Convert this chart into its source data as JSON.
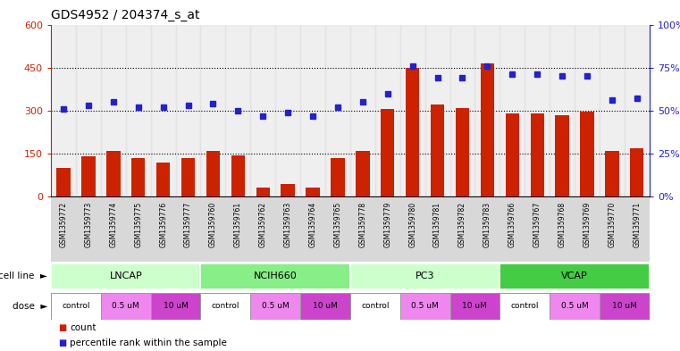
{
  "title": "GDS4952 / 204374_s_at",
  "samples": [
    "GSM1359772",
    "GSM1359773",
    "GSM1359774",
    "GSM1359775",
    "GSM1359776",
    "GSM1359777",
    "GSM1359760",
    "GSM1359761",
    "GSM1359762",
    "GSM1359763",
    "GSM1359764",
    "GSM1359765",
    "GSM1359778",
    "GSM1359779",
    "GSM1359780",
    "GSM1359781",
    "GSM1359782",
    "GSM1359783",
    "GSM1359766",
    "GSM1359767",
    "GSM1359768",
    "GSM1359769",
    "GSM1359770",
    "GSM1359771"
  ],
  "bar_values": [
    100,
    140,
    160,
    133,
    120,
    135,
    158,
    143,
    32,
    45,
    32,
    133,
    160,
    305,
    450,
    320,
    310,
    465,
    290,
    290,
    285,
    295,
    158,
    170
  ],
  "dot_values_pct": [
    51,
    53,
    55,
    52,
    52,
    53,
    54,
    50,
    47,
    49,
    47,
    52,
    55,
    60,
    76,
    69,
    69,
    76,
    71,
    71,
    70,
    70,
    56,
    57
  ],
  "bar_color": "#CC2200",
  "dot_color": "#2222CC",
  "left_ylim": [
    0,
    600
  ],
  "right_ylim": [
    0,
    100
  ],
  "left_yticks": [
    0,
    150,
    300,
    450,
    600
  ],
  "right_yticks": [
    0,
    25,
    50,
    75,
    100
  ],
  "left_yticklabels": [
    "0",
    "150",
    "300",
    "450",
    "600"
  ],
  "right_yticklabels": [
    "0%",
    "25%",
    "50%",
    "75%",
    "100%"
  ],
  "hlines": [
    150,
    300,
    450
  ],
  "cell_lines": [
    {
      "label": "LNCAP",
      "start": 0,
      "end": 6,
      "color": "#ccffcc"
    },
    {
      "label": "NCIH660",
      "start": 6,
      "end": 12,
      "color": "#88ee88"
    },
    {
      "label": "PC3",
      "start": 12,
      "end": 18,
      "color": "#ccffcc"
    },
    {
      "label": "VCAP",
      "start": 18,
      "end": 24,
      "color": "#44cc44"
    }
  ],
  "dose_segments": [
    {
      "label": "control",
      "start": 0,
      "end": 2,
      "color": "#ffffff"
    },
    {
      "label": "0.5 uM",
      "start": 2,
      "end": 4,
      "color": "#ee88ee"
    },
    {
      "label": "10 uM",
      "start": 4,
      "end": 6,
      "color": "#cc44cc"
    },
    {
      "label": "control",
      "start": 6,
      "end": 8,
      "color": "#ffffff"
    },
    {
      "label": "0.5 uM",
      "start": 8,
      "end": 10,
      "color": "#ee88ee"
    },
    {
      "label": "10 uM",
      "start": 10,
      "end": 12,
      "color": "#cc44cc"
    },
    {
      "label": "control",
      "start": 12,
      "end": 14,
      "color": "#ffffff"
    },
    {
      "label": "0.5 uM",
      "start": 14,
      "end": 16,
      "color": "#ee88ee"
    },
    {
      "label": "10 uM",
      "start": 16,
      "end": 18,
      "color": "#cc44cc"
    },
    {
      "label": "control",
      "start": 18,
      "end": 20,
      "color": "#ffffff"
    },
    {
      "label": "0.5 uM",
      "start": 20,
      "end": 22,
      "color": "#ee88ee"
    },
    {
      "label": "10 uM",
      "start": 22,
      "end": 24,
      "color": "#cc44cc"
    }
  ],
  "tick_bg_color": "#cccccc",
  "title_fontsize": 10,
  "bar_width": 0.55
}
